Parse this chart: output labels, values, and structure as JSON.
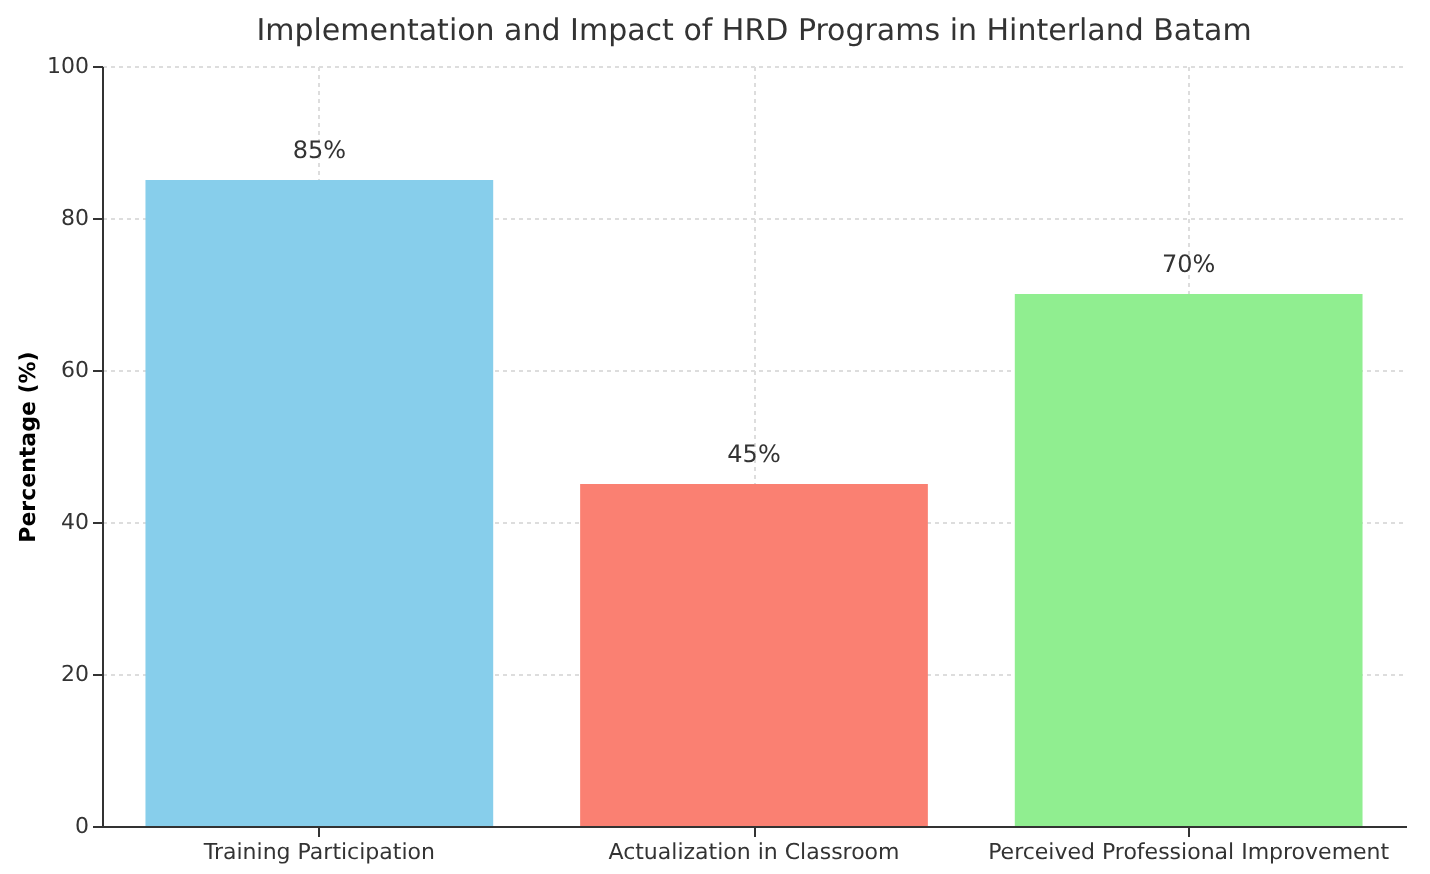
{
  "chart_data": {
    "type": "bar",
    "title": "Implementation and Impact of HRD Programs in Hinterland Batam",
    "ylabel": "Percentage (%)",
    "categories": [
      "Training Participation",
      "Actualization in Classroom",
      "Perceived Professional Improvement"
    ],
    "values": [
      85,
      45,
      70
    ],
    "colors": [
      "#87ceeb",
      "#fa8072",
      "#90ee90"
    ],
    "value_labels": [
      "85%",
      "45%",
      "70%"
    ],
    "ylim": [
      0,
      100
    ],
    "yticks": [
      0,
      20,
      40,
      60,
      80,
      100
    ],
    "grid": true
  }
}
